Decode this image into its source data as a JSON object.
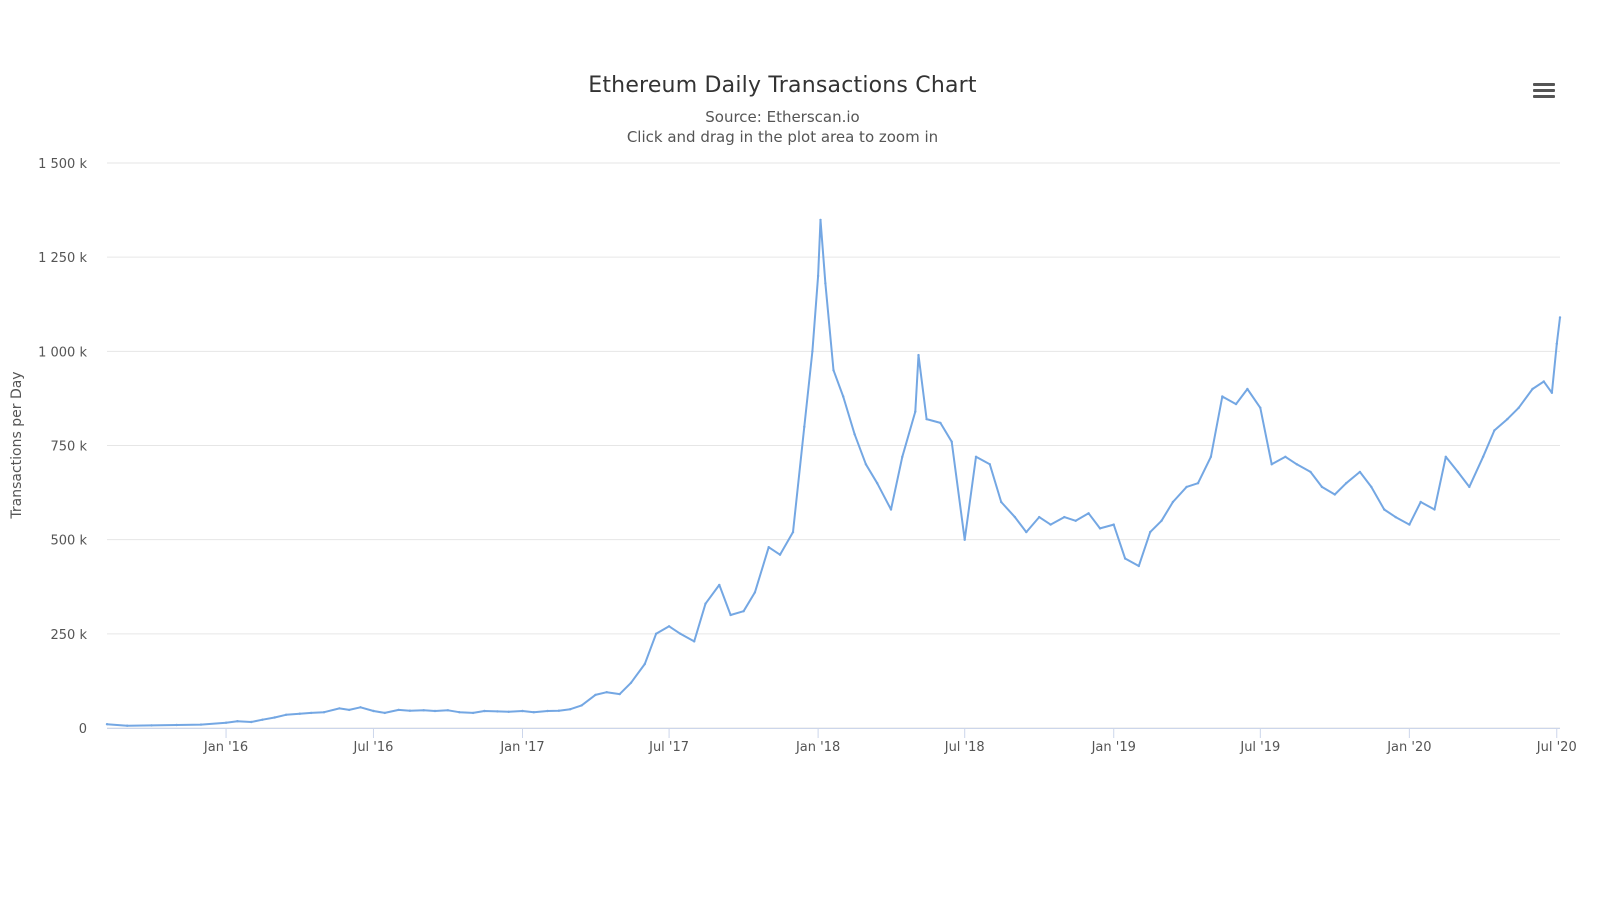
{
  "header": {
    "title": "Ethereum Daily Transactions Chart",
    "source": "Source: Etherscan.io",
    "hint": "Click and drag in the plot area to zoom in"
  },
  "menu": {
    "icon": "hamburger-menu-icon"
  },
  "colors": {
    "line": "#74a7e3",
    "grid": "#e6e6e6",
    "axis": "#ccd6eb"
  },
  "chart_data": {
    "type": "line",
    "title": "Ethereum Daily Transactions Chart",
    "subtitle": "Source: Etherscan.io",
    "xlabel": "",
    "ylabel": "Transactions per Day",
    "xlim": [
      "2015-08-07",
      "2020-07-05"
    ],
    "ylim": [
      0,
      1500000
    ],
    "y_ticks": [
      {
        "value": 0,
        "label": "0"
      },
      {
        "value": 250000,
        "label": "250 k"
      },
      {
        "value": 500000,
        "label": "500 k"
      },
      {
        "value": 750000,
        "label": "750 k"
      },
      {
        "value": 1000000,
        "label": "1 000 k"
      },
      {
        "value": 1250000,
        "label": "1 250 k"
      },
      {
        "value": 1500000,
        "label": "1 500 k"
      }
    ],
    "x_ticks": [
      {
        "date": "2016-01-01",
        "label": "Jan '16"
      },
      {
        "date": "2016-07-01",
        "label": "Jul '16"
      },
      {
        "date": "2017-01-01",
        "label": "Jan '17"
      },
      {
        "date": "2017-07-01",
        "label": "Jul '17"
      },
      {
        "date": "2018-01-01",
        "label": "Jan '18"
      },
      {
        "date": "2018-07-01",
        "label": "Jul '18"
      },
      {
        "date": "2019-01-01",
        "label": "Jan '19"
      },
      {
        "date": "2019-07-01",
        "label": "Jul '19"
      },
      {
        "date": "2020-01-01",
        "label": "Jan '20"
      },
      {
        "date": "2020-07-01",
        "label": "Jul '20"
      }
    ],
    "grid": true,
    "legend": "none",
    "series": [
      {
        "points": [
          [
            "2015-08-07",
            10000
          ],
          [
            "2015-09-01",
            6000
          ],
          [
            "2015-10-01",
            7000
          ],
          [
            "2015-11-01",
            8000
          ],
          [
            "2015-12-01",
            9000
          ],
          [
            "2016-01-01",
            14000
          ],
          [
            "2016-01-15",
            18000
          ],
          [
            "2016-02-01",
            16000
          ],
          [
            "2016-02-15",
            22000
          ],
          [
            "2016-03-01",
            28000
          ],
          [
            "2016-03-15",
            35000
          ],
          [
            "2016-04-01",
            38000
          ],
          [
            "2016-04-15",
            40000
          ],
          [
            "2016-05-01",
            42000
          ],
          [
            "2016-05-20",
            52000
          ],
          [
            "2016-06-01",
            48000
          ],
          [
            "2016-06-15",
            55000
          ],
          [
            "2016-07-01",
            45000
          ],
          [
            "2016-07-15",
            40000
          ],
          [
            "2016-08-01",
            48000
          ],
          [
            "2016-08-15",
            46000
          ],
          [
            "2016-09-01",
            47000
          ],
          [
            "2016-09-15",
            45000
          ],
          [
            "2016-10-01",
            47000
          ],
          [
            "2016-10-15",
            42000
          ],
          [
            "2016-11-01",
            40000
          ],
          [
            "2016-11-15",
            45000
          ],
          [
            "2016-12-01",
            44000
          ],
          [
            "2016-12-15",
            43000
          ],
          [
            "2017-01-01",
            45000
          ],
          [
            "2017-01-15",
            42000
          ],
          [
            "2017-02-01",
            45000
          ],
          [
            "2017-02-15",
            46000
          ],
          [
            "2017-03-01",
            50000
          ],
          [
            "2017-03-15",
            60000
          ],
          [
            "2017-04-01",
            88000
          ],
          [
            "2017-04-15",
            95000
          ],
          [
            "2017-05-01",
            90000
          ],
          [
            "2017-05-15",
            120000
          ],
          [
            "2017-06-01",
            170000
          ],
          [
            "2017-06-15",
            250000
          ],
          [
            "2017-07-01",
            270000
          ],
          [
            "2017-07-15",
            250000
          ],
          [
            "2017-08-01",
            230000
          ],
          [
            "2017-08-15",
            330000
          ],
          [
            "2017-09-01",
            380000
          ],
          [
            "2017-09-15",
            300000
          ],
          [
            "2017-10-01",
            310000
          ],
          [
            "2017-10-15",
            360000
          ],
          [
            "2017-11-01",
            480000
          ],
          [
            "2017-11-15",
            460000
          ],
          [
            "2017-12-01",
            520000
          ],
          [
            "2017-12-15",
            800000
          ],
          [
            "2017-12-25",
            1000000
          ],
          [
            "2018-01-01",
            1200000
          ],
          [
            "2018-01-04",
            1349000
          ],
          [
            "2018-01-10",
            1180000
          ],
          [
            "2018-01-20",
            950000
          ],
          [
            "2018-02-01",
            880000
          ],
          [
            "2018-02-15",
            780000
          ],
          [
            "2018-03-01",
            700000
          ],
          [
            "2018-03-15",
            650000
          ],
          [
            "2018-04-01",
            580000
          ],
          [
            "2018-04-15",
            720000
          ],
          [
            "2018-05-01",
            840000
          ],
          [
            "2018-05-05",
            990000
          ],
          [
            "2018-05-15",
            820000
          ],
          [
            "2018-06-01",
            810000
          ],
          [
            "2018-06-15",
            760000
          ],
          [
            "2018-07-01",
            500000
          ],
          [
            "2018-07-15",
            720000
          ],
          [
            "2018-08-01",
            700000
          ],
          [
            "2018-08-15",
            600000
          ],
          [
            "2018-09-01",
            560000
          ],
          [
            "2018-09-15",
            520000
          ],
          [
            "2018-10-01",
            560000
          ],
          [
            "2018-10-15",
            540000
          ],
          [
            "2018-11-01",
            560000
          ],
          [
            "2018-11-15",
            550000
          ],
          [
            "2018-12-01",
            570000
          ],
          [
            "2018-12-15",
            530000
          ],
          [
            "2019-01-01",
            540000
          ],
          [
            "2019-01-15",
            450000
          ],
          [
            "2019-02-01",
            430000
          ],
          [
            "2019-02-15",
            520000
          ],
          [
            "2019-03-01",
            550000
          ],
          [
            "2019-03-15",
            600000
          ],
          [
            "2019-04-01",
            640000
          ],
          [
            "2019-04-15",
            650000
          ],
          [
            "2019-05-01",
            720000
          ],
          [
            "2019-05-15",
            880000
          ],
          [
            "2019-06-01",
            860000
          ],
          [
            "2019-06-15",
            900000
          ],
          [
            "2019-07-01",
            850000
          ],
          [
            "2019-07-15",
            700000
          ],
          [
            "2019-08-01",
            720000
          ],
          [
            "2019-08-15",
            700000
          ],
          [
            "2019-09-01",
            680000
          ],
          [
            "2019-09-15",
            640000
          ],
          [
            "2019-10-01",
            620000
          ],
          [
            "2019-10-15",
            650000
          ],
          [
            "2019-11-01",
            680000
          ],
          [
            "2019-11-15",
            640000
          ],
          [
            "2019-12-01",
            580000
          ],
          [
            "2019-12-15",
            560000
          ],
          [
            "2020-01-01",
            540000
          ],
          [
            "2020-01-15",
            600000
          ],
          [
            "2020-02-01",
            580000
          ],
          [
            "2020-02-15",
            720000
          ],
          [
            "2020-03-01",
            680000
          ],
          [
            "2020-03-15",
            640000
          ],
          [
            "2020-04-01",
            720000
          ],
          [
            "2020-04-15",
            790000
          ],
          [
            "2020-05-01",
            820000
          ],
          [
            "2020-05-15",
            850000
          ],
          [
            "2020-06-01",
            900000
          ],
          [
            "2020-06-15",
            920000
          ],
          [
            "2020-06-25",
            890000
          ],
          [
            "2020-07-01",
            1020000
          ],
          [
            "2020-07-05",
            1090000
          ]
        ]
      }
    ]
  }
}
